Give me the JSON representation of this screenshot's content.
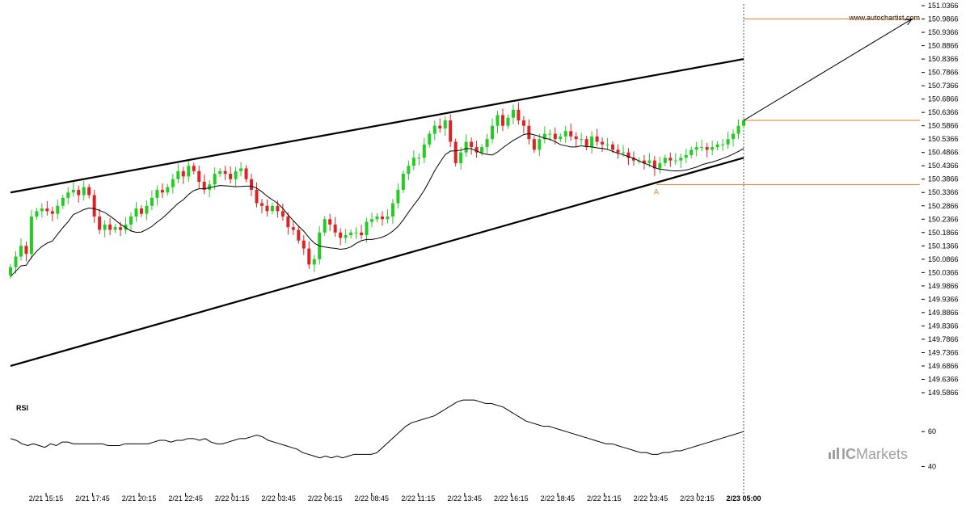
{
  "watermark": "www.autochartist.com",
  "brand": {
    "prefix": "IC",
    "name": "Markets"
  },
  "rsi_label": "RSI",
  "colors": {
    "up": "#22cc22",
    "down": "#dd2222",
    "level": "#e67e22",
    "line": "#000000",
    "brand": "#a0a0a0"
  },
  "chart_data": {
    "type": "candlestick",
    "price_axis": {
      "min": 149.5866,
      "max": 151.0366,
      "ticks": [
        "151.0366",
        "150.9866",
        "150.9366",
        "150.8866",
        "150.8366",
        "150.7866",
        "150.7366",
        "150.6866",
        "150.6366",
        "150.5866",
        "150.5366",
        "150.4866",
        "150.4366",
        "150.3866",
        "150.3366",
        "150.2866",
        "150.2366",
        "150.1866",
        "150.1366",
        "150.0866",
        "150.0366",
        "149.9866",
        "149.9366",
        "149.8866",
        "149.8366",
        "149.7866",
        "149.7366",
        "149.6866",
        "149.6366",
        "149.5866"
      ]
    },
    "time_axis": {
      "labels": [
        "2/21 15:15",
        "2/21 17:45",
        "2/21 20:15",
        "2/21 22:45",
        "2/22 01:15",
        "2/22 03:45",
        "2/22 06:15",
        "2/22 08:45",
        "2/22 11:15",
        "2/22 13:45",
        "2/22 16:15",
        "2/22 18:45",
        "2/22 21:15",
        "2/22 23:45",
        "2/23 02:15"
      ],
      "current_label": "2/23 05:00"
    },
    "closes": [
      150.0566,
      150.0966,
      150.1366,
      150.1066,
      150.2466,
      150.2666,
      150.2766,
      150.2666,
      150.2566,
      150.2866,
      150.3166,
      150.3366,
      150.3466,
      150.3266,
      150.3566,
      150.3266,
      150.2466,
      150.1966,
      150.2166,
      150.1966,
      150.2066,
      150.1966,
      150.2166,
      150.2466,
      150.2766,
      150.2566,
      150.2866,
      150.3166,
      150.3466,
      150.3366,
      150.3566,
      150.3866,
      150.4166,
      150.3966,
      150.4366,
      150.4166,
      150.3766,
      150.3466,
      150.3666,
      150.4066,
      150.4166,
      150.4066,
      150.3866,
      150.4166,
      150.4266,
      150.3866,
      150.3466,
      150.2966,
      150.2866,
      150.2666,
      150.2866,
      150.2666,
      150.2466,
      150.2066,
      150.1966,
      150.1566,
      150.1266,
      150.0666,
      150.0866,
      150.1866,
      150.2366,
      150.2166,
      150.1866,
      150.1666,
      150.1766,
      150.1866,
      150.1866,
      150.1766,
      150.2266,
      150.2366,
      150.2466,
      150.2366,
      150.2466,
      150.2966,
      150.3466,
      150.4066,
      150.4366,
      150.4666,
      150.4666,
      150.5166,
      150.5566,
      150.5866,
      150.5766,
      150.6066,
      150.5266,
      150.4466,
      150.4866,
      150.5266,
      150.5066,
      150.4866,
      150.5066,
      150.5366,
      150.5866,
      150.6266,
      150.5866,
      150.6166,
      150.6466,
      150.6066,
      150.5866,
      150.5366,
      150.4966,
      150.5366,
      150.5566,
      150.5566,
      150.5366,
      150.5466,
      150.5666,
      150.5466,
      150.5366,
      150.5366,
      150.5066,
      150.5466,
      150.5266,
      150.5166,
      150.5166,
      150.4966,
      150.4866,
      150.4866,
      150.4666,
      150.4566,
      150.4566,
      150.4466,
      150.4566,
      150.4266,
      150.4466,
      150.4666,
      150.4566,
      150.4566,
      150.4666,
      150.4766,
      150.4966,
      150.5066,
      150.5066,
      150.4966,
      150.5066,
      150.5166,
      150.5166,
      150.5366,
      150.5566,
      150.5866,
      150.6066
    ],
    "indicators": [
      {
        "type": "moving_average",
        "start": 150.0366,
        "end": 150.5166
      }
    ],
    "patterns": [
      {
        "type": "channel",
        "upper": {
          "start": 150.3366,
          "end": 150.8366
        },
        "lower": {
          "start": 149.6866,
          "end": 150.4666
        },
        "label": "A",
        "touch_value": 150.3666
      }
    ],
    "levels": {
      "forecast": 150.9866,
      "current": 150.6066,
      "support": 150.3666
    },
    "rsi": {
      "ticks": [
        "60",
        "40"
      ],
      "min": 25,
      "max": 85,
      "values": [
        56,
        55,
        53,
        52,
        53,
        52,
        51,
        53,
        52,
        54,
        54,
        53,
        53,
        53,
        53,
        53,
        53,
        52,
        52,
        52,
        53,
        53,
        53,
        53,
        53,
        54,
        55,
        55,
        54,
        55,
        55,
        56,
        56,
        55,
        56,
        54,
        53,
        53,
        54,
        55,
        56,
        56,
        57,
        58,
        57,
        55,
        54,
        53,
        52,
        51,
        50,
        48,
        47,
        46,
        45,
        46,
        45,
        46,
        45,
        46,
        47,
        47,
        47,
        47,
        48,
        51,
        54,
        57,
        60,
        63,
        65,
        66,
        67,
        68,
        69,
        71,
        73,
        75,
        77,
        78,
        78,
        78,
        77,
        76,
        76,
        75,
        74,
        72,
        70,
        68,
        66,
        65,
        64,
        63,
        63,
        62,
        61,
        60,
        59,
        58,
        57,
        56,
        55,
        54,
        53,
        53,
        52,
        51,
        50,
        49,
        48,
        48,
        47,
        47,
        48,
        48,
        49,
        49,
        50,
        51,
        52,
        53,
        54,
        55,
        56,
        57,
        58,
        59,
        60
      ]
    }
  }
}
